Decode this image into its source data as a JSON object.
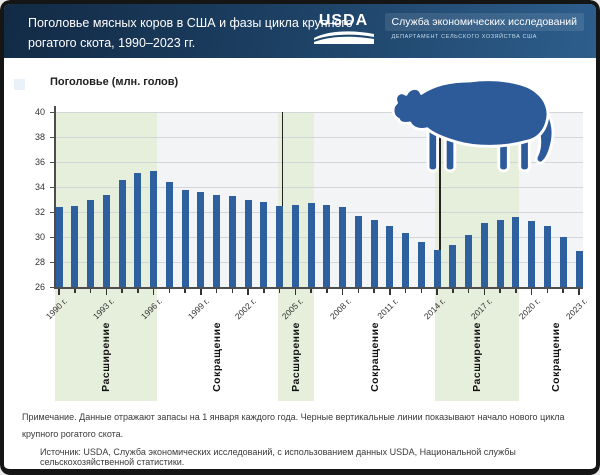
{
  "header": {
    "title_line1": "Поголовье мясных коров в США и фазы цикла крупного",
    "title_line2": "рогатого скота, 1990–2023 гг.",
    "usda_logo": "USDA",
    "agency": "Служба экономических исследований",
    "department": "ДЕПАРТАМЕНТ СЕЛЬСКОГО ХОЗЯЙСТВА США"
  },
  "chart_data": {
    "type": "bar",
    "title": "Поголовье (млн. голов)",
    "ylabel": "Поголовье (млн. голов)",
    "xlabel": "",
    "ylim": [
      26,
      40
    ],
    "yticks": [
      26,
      28,
      30,
      32,
      34,
      36,
      38,
      40
    ],
    "grid": true,
    "bar_color": "#2e5f9f",
    "band_color": "#e6efdc",
    "years": [
      1990,
      1991,
      1992,
      1993,
      1994,
      1995,
      1996,
      1997,
      1998,
      1999,
      2000,
      2001,
      2002,
      2003,
      2004,
      2005,
      2006,
      2007,
      2008,
      2009,
      2010,
      2011,
      2012,
      2013,
      2014,
      2015,
      2016,
      2017,
      2018,
      2019,
      2020,
      2021,
      2022,
      2023
    ],
    "values": [
      32.4,
      32.5,
      33.0,
      33.4,
      34.6,
      35.1,
      35.3,
      34.4,
      33.8,
      33.6,
      33.4,
      33.3,
      33.0,
      32.8,
      32.5,
      32.6,
      32.7,
      32.6,
      32.4,
      31.7,
      31.4,
      30.9,
      30.3,
      29.6,
      29.0,
      29.4,
      30.2,
      31.1,
      31.4,
      31.6,
      31.3,
      30.9,
      30.0,
      28.9
    ],
    "xtick_years": [
      1990,
      1993,
      1996,
      1999,
      2002,
      2005,
      2008,
      2011,
      2014,
      2017,
      2020,
      2023
    ],
    "xtick_labels": [
      "1990 г.",
      "1993 г.",
      "1996 г.",
      "1999 г.",
      "2002 г.",
      "2005 г.",
      "2008 г.",
      "2011 г.",
      "2014 г.",
      "2017 г.",
      "2020 г.",
      "2023 г."
    ],
    "phases": [
      {
        "label": "Расширение",
        "from": 1990,
        "to": 1996,
        "shaded": true
      },
      {
        "label": "Сокращение",
        "from": 1997,
        "to": 2003,
        "shaded": false
      },
      {
        "label": "Расширение",
        "from": 2004,
        "to": 2006,
        "shaded": true
      },
      {
        "label": "Сокращение",
        "from": 2007,
        "to": 2013,
        "shaded": false
      },
      {
        "label": "Расширение",
        "from": 2014,
        "to": 2019,
        "shaded": true
      },
      {
        "label": "Сокращение",
        "from": 2020,
        "to": 2023,
        "shaded": false
      }
    ],
    "cycle_start_years": [
      2004,
      2014
    ],
    "legend_position": "top-left"
  },
  "notes": {
    "note": "Примечание. Данные отражают запасы на 1 января каждого года. Черные вертикальные линии показывают начало нового цикла крупного рогатого скота.",
    "source": "Источник: USDA, Служба экономических исследований, с использованием данных USDA, Национальной службы сельскохозяйственной статистики."
  },
  "colors": {
    "header_dark": "#122a45",
    "header_light": "#2d5e8c",
    "bar": "#2e5f9f",
    "band_green": "#e6efdc",
    "plot_bg": "#f2f4f6",
    "cow_blue": "#2d5a99"
  }
}
